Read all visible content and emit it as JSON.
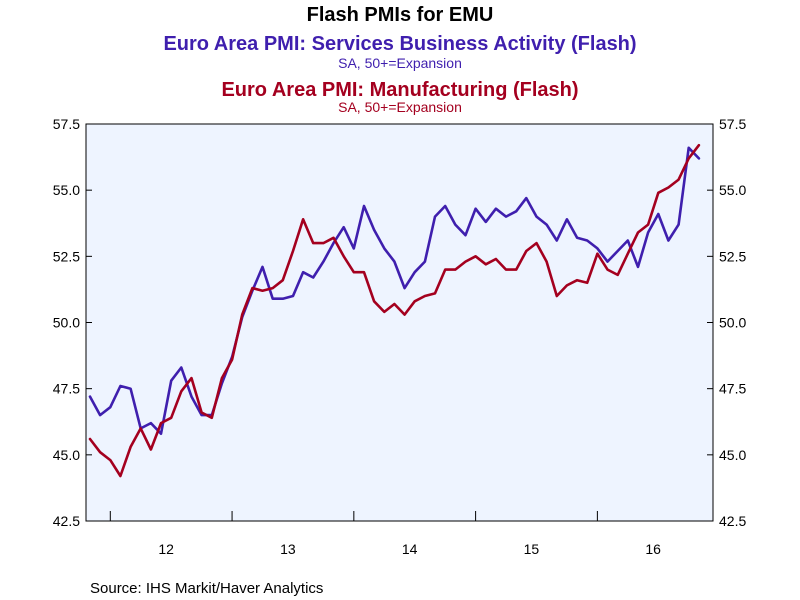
{
  "chart_data": {
    "type": "line",
    "title": "Flash PMIs for EMU",
    "source": "Source:  IHS Markit/Haver Analytics",
    "ylim": [
      42.5,
      57.5
    ],
    "y_ticks": [
      "57.5",
      "55.0",
      "52.5",
      "50.0",
      "47.5",
      "45.0",
      "42.5"
    ],
    "x_labels": [
      "12",
      "13",
      "14",
      "15",
      "16"
    ],
    "x_start": "2011-11",
    "x_end": "2016-12",
    "grid": false,
    "series": [
      {
        "name": "Euro Area PMI: Services Business Activity (Flash)",
        "note": "SA, 50+=Expansion",
        "color": "#3f1fae",
        "values": [
          47.2,
          46.5,
          46.8,
          47.6,
          47.5,
          46.0,
          46.2,
          45.8,
          47.8,
          48.3,
          47.2,
          46.5,
          46.5,
          47.7,
          48.7,
          50.2,
          51.2,
          52.1,
          50.9,
          50.9,
          51.0,
          51.9,
          51.7,
          52.3,
          53.0,
          53.6,
          52.8,
          54.4,
          53.5,
          52.8,
          52.3,
          51.3,
          51.9,
          52.3,
          54.0,
          54.4,
          53.7,
          53.3,
          54.3,
          53.8,
          54.3,
          54.0,
          54.2,
          54.7,
          54.0,
          53.7,
          53.1,
          53.9,
          53.2,
          53.1,
          52.8,
          52.3,
          52.7,
          53.1,
          52.1,
          53.4,
          54.1,
          53.1,
          53.7,
          56.6,
          56.2
        ]
      },
      {
        "name": "Euro Area PMI: Manufacturing (Flash)",
        "note": "SA, 50+=Expansion",
        "color": "#a4001f",
        "values": [
          45.6,
          45.1,
          44.8,
          44.2,
          45.3,
          46.0,
          45.2,
          46.2,
          46.4,
          47.4,
          47.9,
          46.6,
          46.4,
          47.9,
          48.6,
          50.3,
          51.3,
          51.2,
          51.3,
          51.6,
          52.7,
          53.9,
          53.0,
          53.0,
          53.2,
          52.5,
          51.9,
          51.9,
          50.8,
          50.4,
          50.7,
          50.3,
          50.8,
          51.0,
          51.1,
          52.0,
          52.0,
          52.3,
          52.5,
          52.2,
          52.4,
          52.0,
          52.0,
          52.7,
          53.0,
          52.3,
          51.0,
          51.4,
          51.6,
          51.5,
          52.6,
          52.0,
          51.8,
          52.6,
          53.4,
          53.7,
          54.9,
          55.1,
          55.4,
          56.2,
          56.7
        ]
      }
    ]
  }
}
